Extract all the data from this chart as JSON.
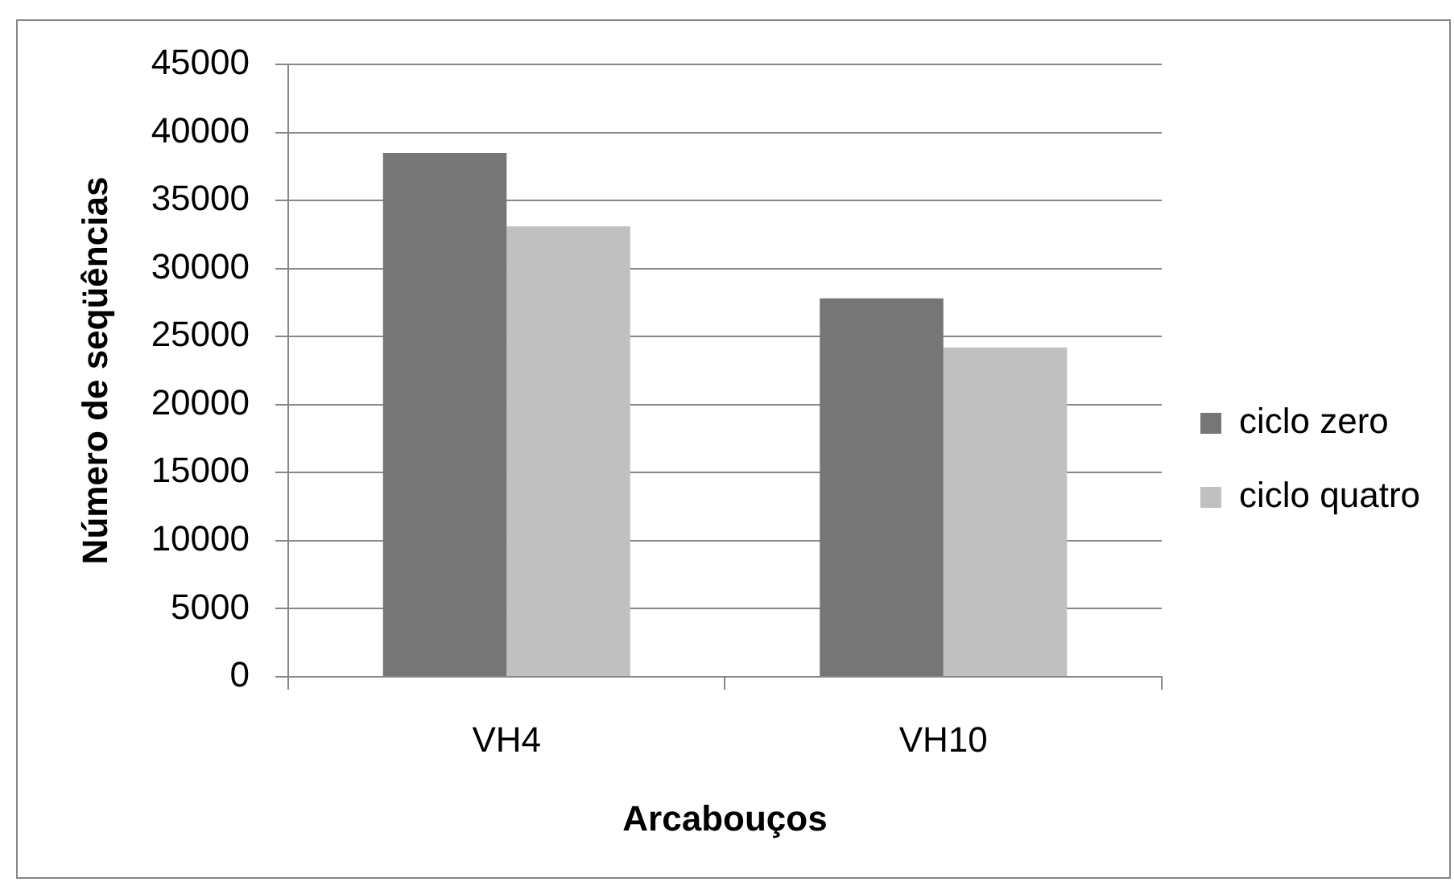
{
  "chart_data": {
    "type": "bar",
    "xlabel": "Arcabouços",
    "ylabel": "Número de seqüências",
    "categories": [
      "VH4",
      "VH10"
    ],
    "series": [
      {
        "name": "ciclo zero",
        "color": "#767676",
        "values": [
          38500,
          27800
        ]
      },
      {
        "name": "ciclo quatro",
        "color": "#c0c0c0",
        "values": [
          33100,
          24200
        ]
      }
    ],
    "ylim": [
      0,
      45000
    ],
    "yticks": [
      0,
      5000,
      10000,
      15000,
      20000,
      25000,
      30000,
      35000,
      40000,
      45000
    ],
    "grid": "y",
    "legend": "right"
  }
}
